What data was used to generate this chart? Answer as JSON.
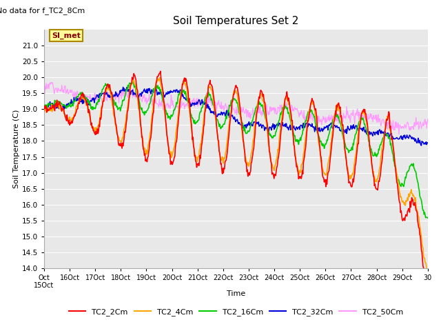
{
  "title": "Soil Temperatures Set 2",
  "no_data_text": "No data for f_TC2_8Cm",
  "xlabel": "Time",
  "ylabel": "Soil Temperature (C)",
  "ylim": [
    14.0,
    21.5
  ],
  "yticks": [
    14.0,
    14.5,
    15.0,
    15.5,
    16.0,
    16.5,
    17.0,
    17.5,
    18.0,
    18.5,
    19.0,
    19.5,
    20.0,
    20.5,
    21.0
  ],
  "series_colors": {
    "TC2_2Cm": "#FF0000",
    "TC2_4Cm": "#FFA500",
    "TC2_16Cm": "#00CC00",
    "TC2_32Cm": "#0000DD",
    "TC2_50Cm": "#FF99FF"
  },
  "legend_label": "SI_met",
  "legend_bg": "#FFFF99",
  "legend_border": "#AA8800",
  "plot_bg": "#E8E8E8",
  "grid_color": "#FFFFFF",
  "n_points": 720
}
